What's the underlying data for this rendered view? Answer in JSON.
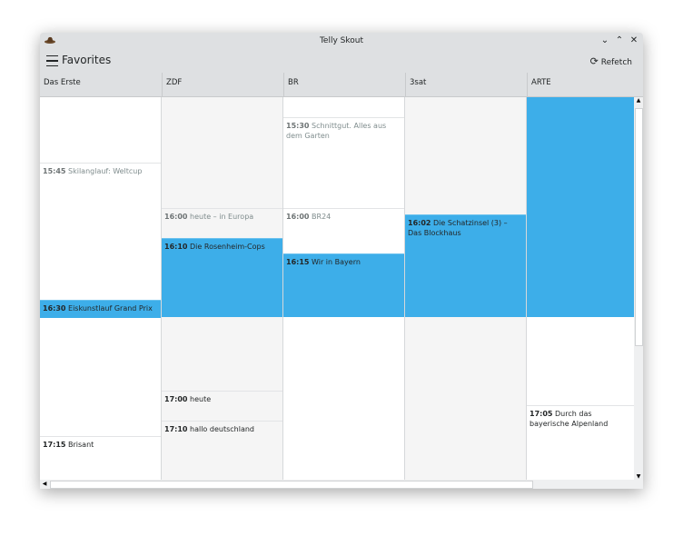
{
  "window": {
    "title": "Telly Skout",
    "controls": [
      "minimize",
      "maximize",
      "close"
    ]
  },
  "toolbar": {
    "page_title": "Favorites",
    "refetch_label": "Refetch"
  },
  "colors": {
    "accent": "#3daee9"
  },
  "channels": [
    {
      "name": "Das Erste",
      "programs": [
        {
          "time": "15:45",
          "title": "Skilanglauf: Weltcup",
          "state": "past"
        },
        {
          "time": "16:30",
          "title": "Eiskunstlauf Grand Prix",
          "state": "current"
        },
        {
          "time": "17:15",
          "title": "Brisant",
          "state": "future"
        }
      ]
    },
    {
      "name": "ZDF",
      "programs": [
        {
          "time": "16:00",
          "title": "heute – in Europa",
          "state": "past"
        },
        {
          "time": "16:10",
          "title": "Die Rosenheim-Cops",
          "state": "current"
        },
        {
          "time": "17:00",
          "title": "heute",
          "state": "future"
        },
        {
          "time": "17:10",
          "title": "hallo deutschland",
          "state": "future"
        }
      ]
    },
    {
      "name": "BR",
      "programs": [
        {
          "time": "15:30",
          "title": "Schnittgut. Alles aus dem Garten",
          "state": "past"
        },
        {
          "time": "16:00",
          "title": "BR24",
          "state": "past"
        },
        {
          "time": "16:15",
          "title": "Wir in Bayern",
          "state": "current"
        }
      ]
    },
    {
      "name": "3sat",
      "programs": [
        {
          "time": "16:02",
          "title": "Die Schatzinsel (3) – Das Blockhaus",
          "state": "current"
        }
      ]
    },
    {
      "name": "ARTE",
      "programs": [
        {
          "time": "17:05",
          "title": "Durch das bayerische Alpenland",
          "state": "future"
        }
      ]
    }
  ]
}
